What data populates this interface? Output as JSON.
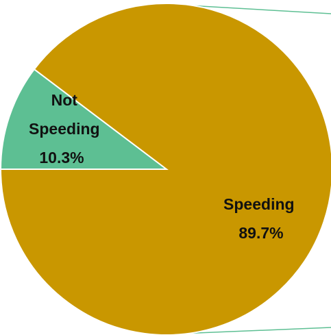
{
  "chart_data": {
    "type": "pie",
    "title": "",
    "slices": [
      {
        "name": "Not Speeding",
        "value": 10.3,
        "label_lines": [
          "Not",
          "Speeding",
          "10.3%"
        ],
        "color": "#5dbf93"
      },
      {
        "name": "Speeding",
        "value": 89.7,
        "label_lines": [
          "Speeding",
          "89.7%"
        ],
        "color": "#c99700"
      }
    ],
    "start_angle_deg": 180,
    "direction": "clockwise",
    "slice_border_color": "#ffffff",
    "connector_color": "#5dbf93"
  }
}
